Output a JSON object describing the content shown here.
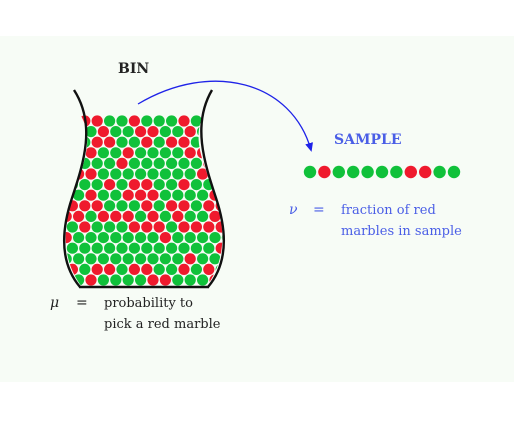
{
  "bin": {
    "title": "BIN",
    "marble_colors": {
      "red": "#ef1a2d",
      "green": "#10c13a"
    },
    "outline_color": "#111111"
  },
  "sample": {
    "title": "SAMPLE",
    "marbles": [
      "green",
      "red",
      "green",
      "green",
      "green",
      "green",
      "green",
      "red",
      "red",
      "green",
      "green"
    ],
    "color": "#4a5ee6",
    "arrow_color": "#1f23e8"
  },
  "mu": {
    "symbol": "μ",
    "equals": "=",
    "line1": "probability to",
    "line2": "pick a red marble"
  },
  "nu": {
    "symbol": "ν",
    "equals": "=",
    "line1": "fraction of red",
    "line2": "marbles in sample"
  },
  "colors": {
    "panel_background": "#f7fcf6"
  }
}
